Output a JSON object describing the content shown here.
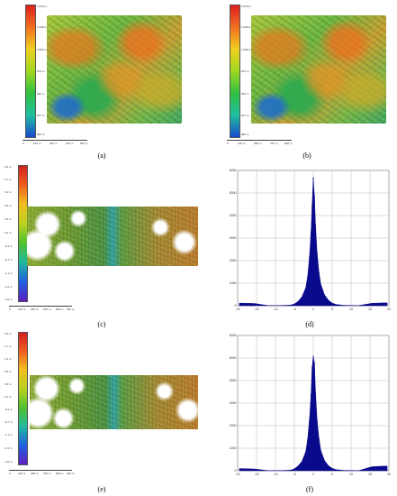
{
  "panels": {
    "a": {
      "caption": "(a)",
      "colorbar_labels": [
        "1,010 m",
        "1,048 m",
        "1,009 m",
        "974 m",
        "946 m",
        "917 m",
        "892 m"
      ],
      "scale_labels": [
        "0",
        "125 m",
        "250 m",
        "375 m",
        "500 m"
      ]
    },
    "b": {
      "caption": "(b)",
      "colorbar_labels": [
        "1,010 m",
        "1,048 m",
        "1,009 m",
        "974 m",
        "946 m",
        "917 m",
        "892 m"
      ],
      "scale_labels": [
        "0",
        "125 m",
        "250 m",
        "375 m",
        "500 m"
      ]
    },
    "c": {
      "caption": "(c)",
      "colorbar_labels": [
        "2.0 m",
        "1.7 m",
        "1.3 m",
        "0.9 m",
        "0.5 m",
        "0.1 m",
        "-0.3 m",
        "-0.7 m",
        "-1.1 m",
        "-1.5 m",
        "-2.0 m"
      ],
      "scale_labels": [
        "0",
        "125 m",
        "250 m",
        "375 m",
        "500 m",
        "625 m"
      ]
    },
    "e": {
      "caption": "(e)",
      "colorbar_labels": [
        "2.0 m",
        "1.7 m",
        "1.3 m",
        "0.9 m",
        "0.5 m",
        "0.1 m",
        "-0.3 m",
        "-0.7 m",
        "-1.1 m",
        "-1.5 m",
        "-2.0 m"
      ],
      "scale_labels": [
        "0",
        "125 m",
        "250 m",
        "375 m",
        "500 m",
        "625 m"
      ]
    },
    "d": {
      "caption": "(d)"
    },
    "f": {
      "caption": "(f)"
    }
  },
  "chart_data": [
    {
      "type": "bar",
      "panel": "d",
      "title": "",
      "xlabel": "",
      "ylabel": "",
      "xlim": [
        -20,
        20
      ],
      "ylim": [
        0,
        6000
      ],
      "xticks": [
        -20,
        -15,
        -10,
        -5,
        0,
        5,
        10,
        15,
        20
      ],
      "yticks": [
        0,
        1000,
        2000,
        3000,
        4000,
        5000,
        6000
      ],
      "grid": true,
      "color": "#0a0a8c",
      "x": [
        -19.5,
        -17.5,
        -15.5,
        -12,
        -8,
        -6,
        -5,
        -4,
        -3,
        -2,
        -1.5,
        -1,
        -0.6,
        -0.3,
        0,
        0.3,
        0.6,
        1,
        1.5,
        2,
        3,
        4,
        5,
        6,
        8,
        12,
        15.5,
        17.5,
        19.5
      ],
      "y": [
        120,
        110,
        100,
        10,
        15,
        30,
        80,
        200,
        400,
        800,
        1300,
        2200,
        3300,
        4500,
        5700,
        4900,
        3600,
        2400,
        1500,
        950,
        480,
        250,
        120,
        60,
        20,
        10,
        110,
        120,
        130
      ]
    },
    {
      "type": "bar",
      "panel": "f",
      "title": "",
      "xlabel": "",
      "ylabel": "",
      "xlim": [
        -20,
        20
      ],
      "ylim": [
        0,
        6000
      ],
      "xticks": [
        -20,
        -15,
        -10,
        -5,
        0,
        5,
        10,
        15,
        20
      ],
      "yticks": [
        0,
        1000,
        2000,
        3000,
        4000,
        5000,
        6000
      ],
      "grid": true,
      "color": "#0a0a8c",
      "x": [
        -19.5,
        -17.5,
        -15.5,
        -12,
        -8,
        -6,
        -5,
        -4,
        -3,
        -2,
        -1.5,
        -1,
        -0.6,
        -0.3,
        0,
        0.3,
        0.6,
        1,
        1.5,
        2,
        3,
        4,
        5,
        6,
        8,
        12,
        15.5,
        17.5,
        19.5
      ],
      "y": [
        100,
        90,
        80,
        10,
        15,
        30,
        90,
        220,
        420,
        850,
        1400,
        2300,
        3400,
        4600,
        5100,
        4800,
        3500,
        2300,
        1450,
        900,
        450,
        230,
        110,
        55,
        20,
        10,
        180,
        200,
        210
      ]
    }
  ]
}
